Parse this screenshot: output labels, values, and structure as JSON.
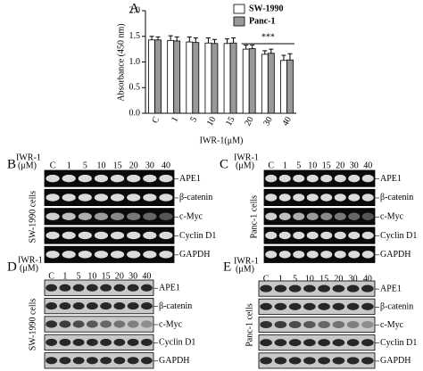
{
  "chart_data": {
    "type": "bar",
    "panel_label": "A",
    "y_label": "Absorbance (450 nm)",
    "x_label": "IWR-1(μM)",
    "categories": [
      "C",
      "1",
      "5",
      "10",
      "15",
      "20",
      "30",
      "40"
    ],
    "series": [
      {
        "name": "SW-1990",
        "color": "#ffffff",
        "values": [
          1.43,
          1.42,
          1.39,
          1.37,
          1.36,
          1.25,
          1.15,
          1.03
        ],
        "errors": [
          0.07,
          0.09,
          0.1,
          0.1,
          0.09,
          0.08,
          0.07,
          0.1
        ]
      },
      {
        "name": "Panc-1",
        "color": "#999999",
        "values": [
          1.43,
          1.41,
          1.38,
          1.36,
          1.37,
          1.26,
          1.17,
          1.04
        ],
        "errors": [
          0.06,
          0.08,
          0.09,
          0.08,
          0.1,
          0.07,
          0.08,
          0.12
        ]
      }
    ],
    "ylim": [
      0,
      2
    ],
    "yticks": [
      {
        "value": 0,
        "label": "0.0"
      },
      {
        "value": 0.5,
        "label": "0.5"
      },
      {
        "value": 1,
        "label": "1.0"
      },
      {
        "value": 1.5,
        "label": "1.5"
      },
      {
        "value": 2,
        "label": "2.0"
      }
    ],
    "annotation": "***",
    "legend": "upper right"
  },
  "panels": [
    {
      "letter": "B",
      "header": [
        "IWR-1",
        "(μM)"
      ],
      "lanes": [
        "C",
        "1",
        "5",
        "10",
        "15",
        "20",
        "30",
        "40"
      ],
      "side": "SW-1990 cells",
      "rows": [
        "APE1",
        "β-catenin",
        "c-Myc",
        "Cyclin D1",
        "GAPDH"
      ]
    },
    {
      "letter": "C",
      "header": [
        "IWR-1",
        "(μM)"
      ],
      "lanes": [
        "C",
        "1",
        "5",
        "10",
        "15",
        "20",
        "30",
        "40"
      ],
      "side": "Panc-1 cells",
      "rows": [
        "APE1",
        "β-catenin",
        "c-Myc",
        "Cyclin D1",
        "GAPDH"
      ]
    },
    {
      "letter": "D",
      "header": [
        "IWR-1",
        "(μM)"
      ],
      "lanes": [
        "C",
        "1",
        "5",
        "10",
        "15",
        "20",
        "30",
        "40"
      ],
      "side": "SW-1990 cells",
      "rows": [
        "APE1",
        "β-catenin",
        "c-Myc",
        "Cyclin D1",
        "GAPDH"
      ]
    },
    {
      "letter": "E",
      "header": [
        "IWR-1",
        "(μM)"
      ],
      "lanes": [
        "C",
        "1",
        "5",
        "10",
        "15",
        "20",
        "30",
        "40"
      ],
      "side": "Panc-1 cells",
      "rows": [
        "APE1",
        "β-catenin",
        "c-Myc",
        "Cyclin D1",
        "GAPDH"
      ]
    }
  ]
}
